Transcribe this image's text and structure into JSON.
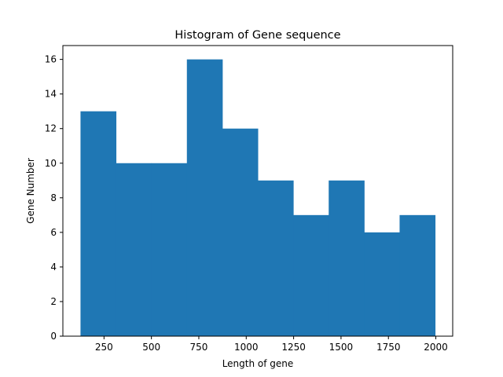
{
  "chart_data": {
    "type": "bar",
    "subtype": "histogram",
    "title": "Histogram of Gene sequence",
    "xlabel": "Length of gene",
    "ylabel": "Gene Number",
    "bin_edges": [
      126,
      313,
      500,
      687,
      874,
      1061,
      1248,
      1435,
      1622,
      1809,
      1996
    ],
    "values": [
      13,
      10,
      10,
      16,
      12,
      9,
      7,
      9,
      6,
      7
    ],
    "xlim": [
      33,
      2089
    ],
    "ylim": [
      0,
      16.8
    ],
    "xticks": [
      250,
      500,
      750,
      1000,
      1250,
      1500,
      1750,
      2000
    ],
    "xtick_labels": [
      "250",
      "500",
      "750",
      "1000",
      "1250",
      "1500",
      "1750",
      "2000"
    ],
    "yticks": [
      0,
      2,
      4,
      6,
      8,
      10,
      12,
      14,
      16
    ],
    "ytick_labels": [
      "0",
      "2",
      "4",
      "6",
      "8",
      "10",
      "12",
      "14",
      "16"
    ],
    "bar_color": "#1f77b4",
    "grid": false,
    "legend": null
  }
}
